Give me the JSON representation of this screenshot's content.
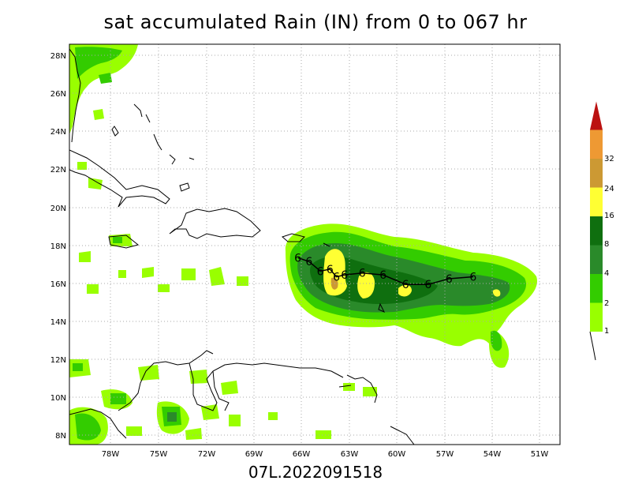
{
  "title": "sat accumulated Rain (IN) from 0 to 067 hr",
  "footer": "07L.2022091518",
  "map": {
    "lon_labels": [
      "78W",
      "75W",
      "72W",
      "69W",
      "66W",
      "63W",
      "60W",
      "57W",
      "54W",
      "51W"
    ],
    "lat_labels": [
      "28N",
      "26N",
      "24N",
      "22N",
      "20N",
      "18N",
      "16N",
      "14N",
      "12N",
      "10N",
      "8N"
    ],
    "lon_range": [
      -80.5,
      -50.0
    ],
    "lat_range": [
      7.5,
      28.5
    ],
    "grid": "dotted"
  },
  "legend": {
    "levels": [
      "1",
      "2",
      "4",
      "8",
      "16",
      "24",
      "32"
    ],
    "colors": [
      "#99ff00",
      "#33cc00",
      "#2a8a2a",
      "#0f6f0f",
      "#ffff33",
      "#cc9933",
      "#ee9933",
      "#bb1111"
    ]
  },
  "storm_track": {
    "symbol": "6",
    "points": [
      [
        -66.3,
        17.3
      ],
      [
        -65.6,
        17.1
      ],
      [
        -64.9,
        16.6
      ],
      [
        -64.3,
        16.7
      ],
      [
        -63.9,
        16.3
      ],
      [
        -63.4,
        16.4
      ],
      [
        -62.3,
        16.5
      ],
      [
        -61.0,
        16.4
      ],
      [
        -59.6,
        15.9
      ],
      [
        -58.2,
        15.9
      ],
      [
        -56.9,
        16.2
      ],
      [
        -55.4,
        16.3
      ]
    ]
  }
}
